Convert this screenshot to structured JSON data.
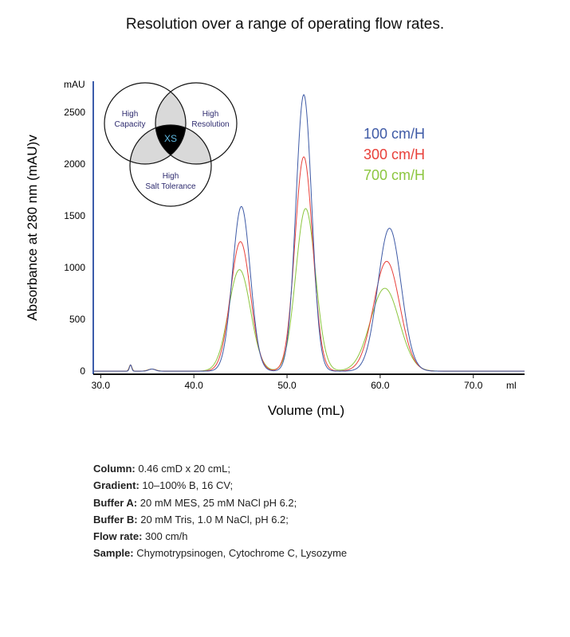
{
  "title": "Resolution over a range of operating flow rates.",
  "chart_data": {
    "type": "line",
    "title": "Resolution over a range of operating flow rates.",
    "xlabel": "Volume (mL)",
    "ylabel": "Absorbance at 280 nm (mAU)v",
    "yunit": "mAU",
    "xunit": "ml",
    "xlim": [
      29.2,
      75.5
    ],
    "ylim": [
      -30,
      2800
    ],
    "xticks": [
      30.0,
      40.0,
      50.0,
      60.0,
      70.0
    ],
    "xtick_labels": [
      "30.0",
      "40.0",
      "50.0",
      "60.0",
      "70.0"
    ],
    "yticks": [
      0,
      500,
      1000,
      1500,
      2000,
      2500
    ],
    "ytick_labels": [
      "0",
      "500",
      "1000",
      "1500",
      "2000",
      "2500"
    ],
    "grid": false,
    "legend_position": "top-right",
    "series": [
      {
        "name": "100 cm/H",
        "color": "#3e5aa6",
        "peaks": [
          {
            "x": 33.2,
            "y": 60
          },
          {
            "x": 35.5,
            "y": 20
          },
          {
            "x": 45.1,
            "y": 1590
          },
          {
            "x": 51.8,
            "y": 2670
          },
          {
            "x": 61.0,
            "y": 1380
          }
        ]
      },
      {
        "name": "300 cm/H",
        "color": "#e8403a",
        "peaks": [
          {
            "x": 33.2,
            "y": 60
          },
          {
            "x": 35.5,
            "y": 20
          },
          {
            "x": 45.0,
            "y": 1250
          },
          {
            "x": 51.8,
            "y": 2070
          },
          {
            "x": 60.7,
            "y": 1060
          }
        ]
      },
      {
        "name": "700 cm/H",
        "color": "#8cc63f",
        "peaks": [
          {
            "x": 33.2,
            "y": 60
          },
          {
            "x": 35.5,
            "y": 20
          },
          {
            "x": 44.9,
            "y": 980
          },
          {
            "x": 52.0,
            "y": 1570
          },
          {
            "x": 60.5,
            "y": 800
          }
        ]
      }
    ]
  },
  "venn": {
    "labels": [
      "High Capacity",
      "High Resolution",
      "High Salt Tolerance"
    ],
    "center_label": "XS",
    "colors": {
      "overlap": "#d9d9d9",
      "center": "#000000",
      "center_text": "#5fb8e0",
      "label_text": "#2d2a6e"
    }
  },
  "notes": [
    {
      "label": "Column:",
      "text": "0.46 cmD x 20 cmL;"
    },
    {
      "label": "Gradient:",
      "text": "10–100% B, 16 CV;"
    },
    {
      "label": "Buffer A:",
      "text": "20 mM MES, 25 mM NaCl pH 6.2;"
    },
    {
      "label": "Buffer B:",
      "text": "20 mM Tris, 1.0 M NaCl, pH 6.2;"
    },
    {
      "label": "Flow rate:",
      "text": "300 cm/h"
    },
    {
      "label": "Sample:",
      "text": "Chymotrypsinogen, Cytochrome C, Lysozyme"
    }
  ]
}
